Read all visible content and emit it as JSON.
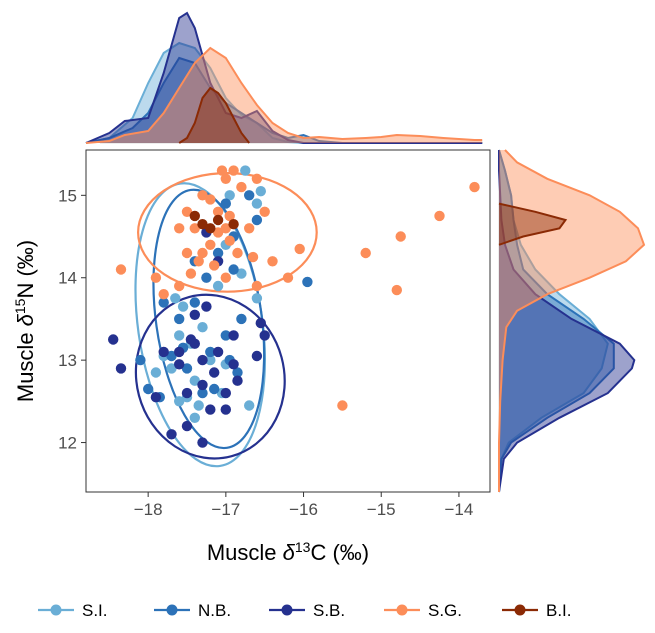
{
  "chart_data": {
    "type": "scatter",
    "xlabel": {
      "prefix": "Muscle ",
      "delta": "δ",
      "sup": "13",
      "suffix": "C (‰)"
    },
    "ylabel": {
      "prefix": "Muscle ",
      "delta": "δ",
      "sup": "15",
      "suffix": "N (‰)"
    },
    "xlim": [
      -18.8,
      -13.6
    ],
    "ylim": [
      11.4,
      15.55
    ],
    "xticks": [
      -18,
      -17,
      -16,
      -15,
      -14
    ],
    "yticks": [
      12,
      13,
      14,
      15
    ],
    "grid": false,
    "legend_position": "bottom",
    "series": [
      {
        "name": "S.I.",
        "color": "#6aaed6",
        "points": [
          [
            -17.8,
            13.05
          ],
          [
            -17.6,
            12.5
          ],
          [
            -17.4,
            12.75
          ],
          [
            -17.5,
            12.55
          ],
          [
            -17.0,
            12.95
          ],
          [
            -17.4,
            12.3
          ],
          [
            -17.7,
            12.9
          ],
          [
            -16.7,
            12.45
          ],
          [
            -17.2,
            13.0
          ],
          [
            -17.6,
            13.3
          ],
          [
            -17.45,
            13.2
          ],
          [
            -16.6,
            13.75
          ],
          [
            -17.55,
            13.65
          ],
          [
            -17.1,
            13.9
          ],
          [
            -16.8,
            14.05
          ],
          [
            -17.3,
            13.4
          ],
          [
            -17.9,
            12.85
          ],
          [
            -16.95,
            15.0
          ],
          [
            -16.75,
            15.3
          ],
          [
            -16.55,
            15.05
          ],
          [
            -17.0,
            14.4
          ],
          [
            -16.6,
            14.9
          ],
          [
            -17.65,
            13.75
          ],
          [
            -17.35,
            12.45
          ],
          [
            -17.05,
            12.6
          ]
        ]
      },
      {
        "name": "N.B.",
        "color": "#2c72b8",
        "points": [
          [
            -18.1,
            13.0
          ],
          [
            -18.0,
            12.65
          ],
          [
            -17.85,
            12.55
          ],
          [
            -17.6,
            13.5
          ],
          [
            -17.4,
            13.7
          ],
          [
            -17.0,
            13.3
          ],
          [
            -16.8,
            13.5
          ],
          [
            -16.9,
            14.1
          ],
          [
            -17.1,
            14.3
          ],
          [
            -17.2,
            13.1
          ],
          [
            -17.5,
            12.9
          ],
          [
            -17.3,
            12.6
          ],
          [
            -16.95,
            13.0
          ],
          [
            -16.7,
            15.0
          ],
          [
            -17.0,
            14.9
          ],
          [
            -15.95,
            13.95
          ],
          [
            -17.4,
            14.2
          ],
          [
            -17.7,
            13.05
          ],
          [
            -17.55,
            13.15
          ],
          [
            -16.85,
            12.85
          ],
          [
            -17.15,
            12.65
          ],
          [
            -16.9,
            14.5
          ],
          [
            -17.8,
            13.7
          ],
          [
            -16.6,
            14.7
          ],
          [
            -17.25,
            14.0
          ]
        ]
      },
      {
        "name": "S.B.",
        "color": "#25318f",
        "points": [
          [
            -18.45,
            13.25
          ],
          [
            -18.35,
            12.9
          ],
          [
            -17.7,
            12.1
          ],
          [
            -17.5,
            12.2
          ],
          [
            -17.3,
            12.0
          ],
          [
            -17.9,
            12.55
          ],
          [
            -17.5,
            12.6
          ],
          [
            -17.0,
            12.6
          ],
          [
            -16.9,
            12.95
          ],
          [
            -16.6,
            13.05
          ],
          [
            -16.5,
            13.3
          ],
          [
            -16.9,
            13.3
          ],
          [
            -17.1,
            13.1
          ],
          [
            -17.3,
            13.0
          ],
          [
            -17.6,
            12.95
          ],
          [
            -17.8,
            13.1
          ],
          [
            -16.55,
            13.45
          ],
          [
            -17.2,
            12.4
          ],
          [
            -17.0,
            12.4
          ],
          [
            -16.85,
            12.75
          ],
          [
            -17.4,
            13.2
          ],
          [
            -17.6,
            13.1
          ],
          [
            -17.45,
            13.25
          ],
          [
            -17.15,
            12.85
          ],
          [
            -17.3,
            12.7
          ],
          [
            -17.25,
            13.65
          ],
          [
            -17.4,
            13.55
          ],
          [
            -17.25,
            14.55
          ],
          [
            -17.1,
            14.2
          ]
        ]
      },
      {
        "name": "S.G.",
        "color": "#fc8d59",
        "points": [
          [
            -18.35,
            14.1
          ],
          [
            -17.9,
            14.0
          ],
          [
            -17.8,
            13.8
          ],
          [
            -17.5,
            14.3
          ],
          [
            -17.4,
            14.6
          ],
          [
            -17.3,
            15.0
          ],
          [
            -17.2,
            14.4
          ],
          [
            -17.1,
            14.8
          ],
          [
            -17.0,
            15.2
          ],
          [
            -16.9,
            15.3
          ],
          [
            -16.8,
            15.1
          ],
          [
            -16.6,
            15.2
          ],
          [
            -16.5,
            14.8
          ],
          [
            -16.4,
            14.2
          ],
          [
            -16.2,
            14.0
          ],
          [
            -16.05,
            14.35
          ],
          [
            -15.2,
            14.3
          ],
          [
            -14.75,
            14.5
          ],
          [
            -14.8,
            13.85
          ],
          [
            -14.25,
            14.75
          ],
          [
            -13.8,
            15.1
          ],
          [
            -15.5,
            12.45
          ],
          [
            -16.6,
            13.9
          ],
          [
            -17.0,
            14.0
          ],
          [
            -17.6,
            13.9
          ],
          [
            -17.45,
            14.05
          ],
          [
            -17.3,
            14.3
          ],
          [
            -17.6,
            14.6
          ],
          [
            -17.1,
            14.55
          ],
          [
            -16.95,
            14.75
          ],
          [
            -17.2,
            14.95
          ],
          [
            -16.7,
            14.6
          ],
          [
            -17.0,
            14.6
          ],
          [
            -17.35,
            14.2
          ],
          [
            -17.5,
            14.8
          ],
          [
            -16.85,
            14.3
          ],
          [
            -16.95,
            14.45
          ],
          [
            -17.15,
            14.15
          ],
          [
            -16.65,
            14.25
          ],
          [
            -17.05,
            15.3
          ]
        ]
      },
      {
        "name": "B.I.",
        "color": "#8b2a05",
        "points": [
          [
            -17.4,
            14.75
          ],
          [
            -17.3,
            14.65
          ],
          [
            -17.1,
            14.7
          ],
          [
            -16.9,
            14.65
          ],
          [
            -17.2,
            14.6
          ]
        ]
      }
    ],
    "ellipses": [
      {
        "name": "S.I.",
        "color": "#6aaed6",
        "cx": -17.33,
        "cy": 13.43,
        "rx": 0.8,
        "ry": 1.73,
        "rot_deg": -8
      },
      {
        "name": "N.B.",
        "color": "#2c72b8",
        "cx": -17.22,
        "cy": 13.5,
        "rx": 0.68,
        "ry": 1.58,
        "rot_deg": -8
      },
      {
        "name": "S.B.",
        "color": "#25318f",
        "cx": -17.2,
        "cy": 12.8,
        "rx": 0.95,
        "ry": 1.0,
        "rot_deg": -15
      },
      {
        "name": "S.G.",
        "color": "#fc8d59",
        "cx": -16.98,
        "cy": 14.55,
        "rx": 1.15,
        "ry": 0.72,
        "rot_deg": 0
      }
    ],
    "marginal_density_x": [
      {
        "name": "S.I.",
        "color": "#6aaed6",
        "x": [
          -18.8,
          -18.5,
          -18.2,
          -18.0,
          -17.8,
          -17.6,
          -17.4,
          -17.2,
          -17.0,
          -16.8,
          -16.6,
          -16.4,
          -16.2,
          -16.0,
          -15.5,
          -15.0,
          -14.5,
          -14.0,
          -13.7
        ],
        "y": [
          0.0,
          0.05,
          0.25,
          0.6,
          0.9,
          1.0,
          0.95,
          0.75,
          0.45,
          0.28,
          0.2,
          0.05,
          0.01,
          0,
          0,
          0,
          0,
          0,
          0
        ]
      },
      {
        "name": "N.B.",
        "color": "#2c72b8",
        "x": [
          -18.8,
          -18.5,
          -18.2,
          -18.0,
          -17.8,
          -17.6,
          -17.4,
          -17.2,
          -17.0,
          -16.8,
          -16.6,
          -16.4,
          -16.2,
          -16.0,
          -15.8,
          -15.5,
          -15.0,
          -14.5,
          -14.0,
          -13.7
        ],
        "y": [
          0.0,
          0.05,
          0.15,
          0.3,
          0.6,
          0.85,
          0.8,
          0.55,
          0.4,
          0.3,
          0.2,
          0.1,
          0.05,
          0.08,
          0.02,
          0,
          0,
          0,
          0,
          0
        ]
      },
      {
        "name": "S.B.",
        "color": "#25318f",
        "x": [
          -18.8,
          -18.5,
          -18.3,
          -18.0,
          -17.8,
          -17.6,
          -17.5,
          -17.4,
          -17.2,
          -17.0,
          -16.8,
          -16.6,
          -16.4,
          -16.2,
          -16.0,
          -15.5,
          -15.0,
          -14.5,
          -14.0,
          -13.7
        ],
        "y": [
          0.0,
          0.1,
          0.22,
          0.25,
          0.7,
          1.25,
          1.3,
          1.15,
          0.6,
          0.3,
          0.25,
          0.32,
          0.12,
          0.03,
          0,
          0,
          0,
          0,
          0,
          0
        ]
      },
      {
        "name": "S.G.",
        "color": "#fc8d59",
        "x": [
          -18.8,
          -18.5,
          -18.3,
          -18.0,
          -17.8,
          -17.6,
          -17.4,
          -17.2,
          -17.0,
          -16.8,
          -16.6,
          -16.4,
          -16.2,
          -16.0,
          -15.8,
          -15.5,
          -15.2,
          -15.0,
          -14.8,
          -14.5,
          -14.2,
          -14.0,
          -13.8,
          -13.7
        ],
        "y": [
          0.0,
          0.02,
          0.08,
          0.12,
          0.3,
          0.55,
          0.8,
          0.95,
          0.85,
          0.6,
          0.38,
          0.2,
          0.1,
          0.05,
          0.06,
          0.04,
          0.05,
          0.06,
          0.08,
          0.07,
          0.05,
          0.04,
          0.03,
          0.03
        ]
      },
      {
        "name": "B.I.",
        "color": "#8b2a05",
        "x": [
          -17.6,
          -17.5,
          -17.4,
          -17.3,
          -17.2,
          -17.1,
          -17.0,
          -16.9,
          -16.8,
          -16.7
        ],
        "y": [
          0.0,
          0.05,
          0.2,
          0.45,
          0.55,
          0.5,
          0.4,
          0.25,
          0.1,
          0.0
        ]
      }
    ],
    "marginal_density_y": [
      {
        "name": "S.I.",
        "color": "#6aaed6",
        "y": [
          11.4,
          11.8,
          12.0,
          12.3,
          12.6,
          12.9,
          13.2,
          13.5,
          13.8,
          14.1,
          14.4,
          14.7,
          15.0,
          15.3,
          15.55
        ],
        "d": [
          0.0,
          0.02,
          0.08,
          0.35,
          0.7,
          0.85,
          0.9,
          0.75,
          0.5,
          0.3,
          0.18,
          0.12,
          0.1,
          0.05,
          0.0
        ]
      },
      {
        "name": "N.B.",
        "color": "#2c72b8",
        "y": [
          11.4,
          11.8,
          12.0,
          12.3,
          12.6,
          12.9,
          13.2,
          13.5,
          13.8,
          14.1,
          14.4,
          14.7,
          15.0,
          15.3,
          15.55
        ],
        "d": [
          0.0,
          0.02,
          0.1,
          0.4,
          0.75,
          0.95,
          0.95,
          0.7,
          0.4,
          0.2,
          0.15,
          0.12,
          0.1,
          0.05,
          0.0
        ]
      },
      {
        "name": "S.B.",
        "color": "#25318f",
        "y": [
          11.4,
          11.8,
          12.0,
          12.3,
          12.6,
          12.9,
          13.0,
          13.2,
          13.5,
          13.8,
          14.1,
          14.4,
          14.7,
          15.0,
          15.3,
          15.55
        ],
        "d": [
          0.0,
          0.04,
          0.15,
          0.5,
          0.9,
          1.1,
          1.12,
          1.0,
          0.6,
          0.3,
          0.12,
          0.05,
          0.02,
          0.01,
          0.0,
          0.0
        ]
      },
      {
        "name": "S.G.",
        "color": "#fc8d59",
        "y": [
          11.4,
          12.0,
          12.5,
          13.0,
          13.4,
          13.6,
          13.8,
          14.0,
          14.2,
          14.4,
          14.6,
          14.8,
          15.0,
          15.2,
          15.4,
          15.55
        ],
        "d": [
          0.0,
          0.0,
          0.01,
          0.03,
          0.06,
          0.15,
          0.4,
          0.75,
          1.05,
          1.2,
          1.15,
          1.0,
          0.75,
          0.4,
          0.15,
          0.05
        ]
      },
      {
        "name": "B.I.",
        "color": "#8b2a05",
        "y": [
          14.4,
          14.5,
          14.6,
          14.7,
          14.8,
          14.9
        ],
        "d": [
          0.0,
          0.2,
          0.5,
          0.55,
          0.3,
          0.0
        ]
      }
    ]
  }
}
